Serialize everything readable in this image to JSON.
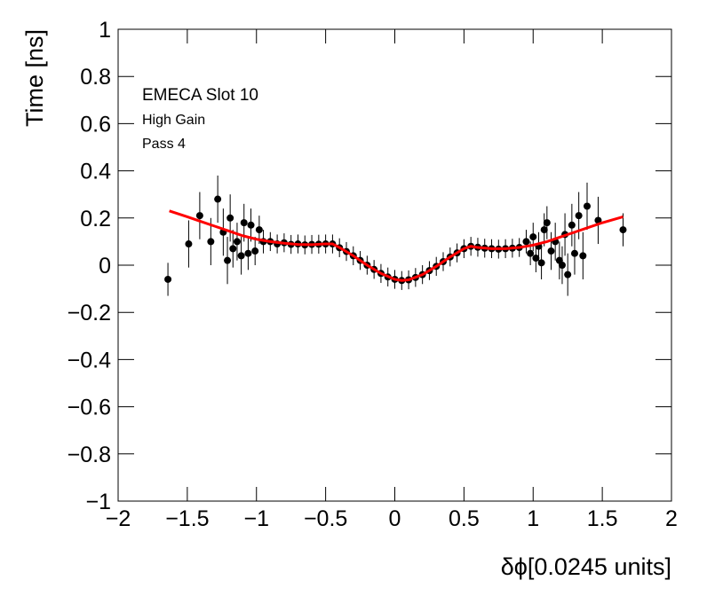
{
  "chart_data": {
    "type": "scatter",
    "annotations": [
      "EMECA Slot 10",
      "High Gain",
      "Pass 4"
    ],
    "x_label": "δϕ[0.0245 units]",
    "y_label": "Time [ns]",
    "xlim": [
      -2,
      2
    ],
    "ylim": [
      -1,
      1
    ],
    "xticks": [
      {
        "value": -2,
        "label": "−2"
      },
      {
        "value": -1.5,
        "label": "−1.5"
      },
      {
        "value": -1,
        "label": "−1"
      },
      {
        "value": -0.5,
        "label": "−0.5"
      },
      0,
      0.5,
      1,
      1.5,
      2
    ],
    "yticks": [
      {
        "value": -1,
        "label": "−1"
      },
      {
        "value": -0.8,
        "label": "−0.8"
      },
      {
        "value": -0.6,
        "label": "−0.6"
      },
      {
        "value": -0.4,
        "label": "−0.4"
      },
      {
        "value": -0.2,
        "label": "−0.2"
      },
      0,
      0.2,
      0.4,
      0.6,
      0.8,
      1
    ],
    "series": [
      {
        "type": "scatter",
        "color": "#000000",
        "x": [
          -1.64,
          -1.49,
          -1.41,
          -1.33,
          -1.28,
          -1.24,
          -1.21,
          -1.19,
          -1.17,
          -1.14,
          -1.11,
          -1.09,
          -1.06,
          -1.04,
          -1.01,
          -0.98,
          -0.95,
          -0.9,
          -0.85,
          -0.8,
          -0.75,
          -0.7,
          -0.65,
          -0.6,
          -0.55,
          -0.5,
          -0.45,
          -0.4,
          -0.35,
          -0.3,
          -0.25,
          -0.2,
          -0.15,
          -0.1,
          -0.05,
          0,
          0.05,
          0.1,
          0.15,
          0.2,
          0.25,
          0.3,
          0.35,
          0.4,
          0.45,
          0.5,
          0.55,
          0.6,
          0.65,
          0.7,
          0.75,
          0.8,
          0.85,
          0.9,
          0.95,
          0.98,
          1.0,
          1.02,
          1.04,
          1.06,
          1.08,
          1.1,
          1.13,
          1.16,
          1.19,
          1.21,
          1.23,
          1.25,
          1.28,
          1.3,
          1.33,
          1.36,
          1.39,
          1.47,
          1.65
        ],
        "values": [
          -0.06,
          0.09,
          0.21,
          0.1,
          0.28,
          0.14,
          0.02,
          0.2,
          0.07,
          0.1,
          0.04,
          0.18,
          0.05,
          0.17,
          0.06,
          0.15,
          0.1,
          0.1,
          0.09,
          0.095,
          0.088,
          0.09,
          0.086,
          0.088,
          0.089,
          0.09,
          0.09,
          0.074,
          0.058,
          0.04,
          0.02,
          0.0,
          -0.018,
          -0.035,
          -0.05,
          -0.06,
          -0.065,
          -0.062,
          -0.052,
          -0.04,
          -0.023,
          -0.005,
          0.015,
          0.035,
          0.052,
          0.07,
          0.08,
          0.076,
          0.072,
          0.07,
          0.068,
          0.07,
          0.072,
          0.075,
          0.1,
          0.05,
          0.12,
          0.03,
          0.08,
          0.01,
          0.15,
          0.18,
          0.06,
          0.1,
          0.02,
          0.0,
          0.13,
          -0.04,
          0.17,
          0.05,
          0.21,
          0.04,
          0.25,
          0.19,
          0.15
        ],
        "errors": [
          0.07,
          0.1,
          0.1,
          0.1,
          0.1,
          0.1,
          0.1,
          0.1,
          0.08,
          0.08,
          0.08,
          0.08,
          0.07,
          0.07,
          0.06,
          0.06,
          0.05,
          0.04,
          0.04,
          0.04,
          0.04,
          0.04,
          0.04,
          0.04,
          0.04,
          0.04,
          0.04,
          0.04,
          0.04,
          0.04,
          0.04,
          0.04,
          0.04,
          0.04,
          0.04,
          0.04,
          0.04,
          0.04,
          0.04,
          0.04,
          0.04,
          0.04,
          0.04,
          0.04,
          0.04,
          0.04,
          0.04,
          0.04,
          0.04,
          0.04,
          0.04,
          0.04,
          0.04,
          0.04,
          0.05,
          0.05,
          0.06,
          0.06,
          0.06,
          0.07,
          0.07,
          0.07,
          0.08,
          0.08,
          0.08,
          0.08,
          0.09,
          0.09,
          0.09,
          0.09,
          0.1,
          0.1,
          0.1,
          0.1,
          0.07
        ]
      },
      {
        "type": "line",
        "color": "#ff0000",
        "x": [
          -1.63,
          -1.5,
          -1.4,
          -1.3,
          -1.2,
          -1.1,
          -1.0,
          -0.9,
          -0.8,
          -0.7,
          -0.6,
          -0.5,
          -0.45,
          -0.4,
          -0.3,
          -0.2,
          -0.1,
          0.0,
          0.05,
          0.1,
          0.2,
          0.3,
          0.4,
          0.5,
          0.55,
          0.6,
          0.7,
          0.8,
          0.9,
          1.0,
          1.1,
          1.2,
          1.3,
          1.4,
          1.5,
          1.65
        ],
        "values": [
          0.23,
          0.205,
          0.185,
          0.165,
          0.145,
          0.125,
          0.11,
          0.1,
          0.093,
          0.088,
          0.087,
          0.09,
          0.09,
          0.075,
          0.04,
          0.0,
          -0.035,
          -0.06,
          -0.065,
          -0.062,
          -0.04,
          -0.005,
          0.035,
          0.07,
          0.08,
          0.075,
          0.07,
          0.07,
          0.075,
          0.085,
          0.1,
          0.12,
          0.14,
          0.16,
          0.18,
          0.205
        ]
      }
    ]
  }
}
